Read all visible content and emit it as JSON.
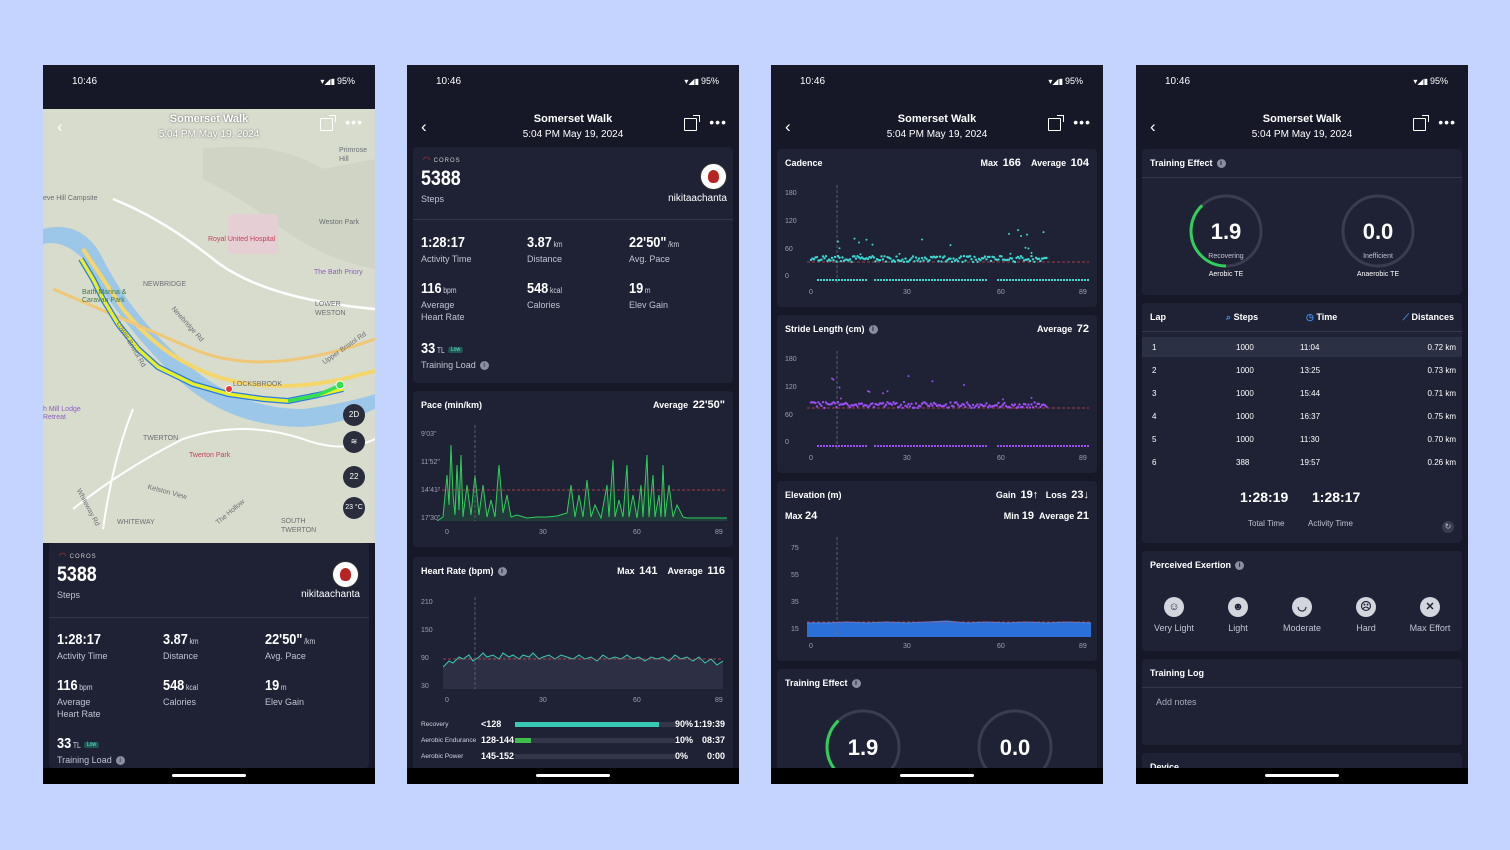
{
  "status": {
    "time": "10:46",
    "battery": "95%"
  },
  "header": {
    "title": "Somerset Walk",
    "subtitle": "5:04 PM May 19, 2024"
  },
  "summary": {
    "brand": "COROS",
    "steps_value": "5388",
    "steps_label": "Steps",
    "username": "nikitaachanta",
    "activity_time": "1:28:17",
    "activity_time_label": "Activity Time",
    "distance": "3.87",
    "distance_unit": "km",
    "distance_label": "Distance",
    "pace": "22'50\"",
    "pace_unit": "/km",
    "pace_label": "Avg. Pace",
    "heart_rate": "116",
    "heart_rate_unit": "bpm",
    "heart_rate_label_1": "Average",
    "heart_rate_label_2": "Heart Rate",
    "calories": "548",
    "calories_unit": "kcal",
    "calories_label": "Calories",
    "elev_gain": "19",
    "elev_gain_unit": "m",
    "elev_gain_label": "Elev Gain",
    "training_load": "33",
    "training_load_unit": "TL",
    "training_load_badge": "Low",
    "training_load_label": "Training Load"
  },
  "map": {
    "labels": [
      "Somerset Walk",
      "Primrose Hill",
      "Royal United Hospital",
      "Weston Park",
      "The Bath Priory",
      "NEWBRIDGE",
      "LOWER WESTON",
      "Bath Marina & Caravan Park",
      "Newbridge Rd",
      "Lower Bristol Rd",
      "Upper Bristol Rd",
      "TWERTON",
      "Twerton Park",
      "Kelston View",
      "WHITEWAY",
      "The Hollow",
      "SOUTH TWERTON",
      "Whiteway Rd",
      "eve Hill Campsite",
      "h Mill Lodge Retreat",
      "Lower Bristol Rd",
      "A4",
      "A36",
      "LOCKSBROOK"
    ],
    "buttons": {
      "twod": "2D",
      "hr": "22",
      "temp": "23 °C"
    }
  },
  "pace_chart": {
    "title": "Pace (min/km)",
    "avg_label": "Average",
    "avg_value": "22'50\"",
    "y_ticks": [
      "9'03\"",
      "11'52\"",
      "14'41\"",
      "17'30\""
    ],
    "x_ticks": [
      "0",
      "30",
      "60",
      "89"
    ]
  },
  "hr_chart": {
    "title": "Heart Rate (bpm)",
    "max_label": "Max",
    "max_value": "141",
    "avg_label": "Average",
    "avg_value": "116",
    "y_ticks": [
      "210",
      "150",
      "90",
      "30"
    ],
    "x_ticks": [
      "0",
      "30",
      "60",
      "89"
    ],
    "zones": [
      {
        "name": "Recovery",
        "range": "<128",
        "percent": "90%",
        "time": "1:19:39",
        "fill": 0.9,
        "color": "#37c9b3"
      },
      {
        "name": "Aerobic Endurance",
        "range": "128-144",
        "percent": "10%",
        "time": "08:37",
        "fill": 0.1,
        "color": "#3fbf4a"
      },
      {
        "name": "Aerobic Power",
        "range": "145-152",
        "percent": "0%",
        "time": "0:00",
        "fill": 0.0,
        "color": "#d1b82a"
      }
    ]
  },
  "cadence_chart": {
    "title": "Cadence",
    "max_label": "Max",
    "max_value": "166",
    "avg_label": "Average",
    "avg_value": "104",
    "y_ticks": [
      "180",
      "120",
      "60",
      "0"
    ],
    "x_ticks": [
      "0",
      "30",
      "60",
      "89"
    ],
    "color": "#3fd6d0"
  },
  "stride_chart": {
    "title": "Stride Length (cm)",
    "avg_label": "Average",
    "avg_value": "72",
    "y_ticks": [
      "180",
      "120",
      "60",
      "0"
    ],
    "x_ticks": [
      "0",
      "30",
      "60",
      "89"
    ],
    "color": "#9a4ef0"
  },
  "elevation_chart": {
    "title": "Elevation (m)",
    "gain_label": "Gain",
    "gain_value": "19↑",
    "loss_label": "Loss",
    "loss_value": "23↓",
    "max_label": "Max",
    "max_value": "24",
    "min_label": "Min",
    "min_value": "19",
    "avg_label": "Average",
    "avg_value": "21",
    "y_ticks": [
      "75",
      "55",
      "35",
      "15"
    ],
    "x_ticks": [
      "0",
      "30",
      "60",
      "89"
    ],
    "color": "#2b6fd8"
  },
  "training_effect": {
    "title": "Training Effect",
    "aerobic_value": "1.9",
    "aerobic_status": "Recovering",
    "aerobic_label": "Aerobic TE",
    "aerobic_fill": 0.38,
    "anaerobic_value": "0.0",
    "anaerobic_status": "Inefficient",
    "anaerobic_label": "Anaerobic TE",
    "anaerobic_fill": 0.0,
    "color": "#2fcf5a"
  },
  "laps": {
    "title": "Lap",
    "tabs": [
      "Steps",
      "Time",
      "Distances"
    ],
    "rows": [
      {
        "lap": "1",
        "steps": "1000",
        "time": "11:04",
        "dist": "0.72 km"
      },
      {
        "lap": "2",
        "steps": "1000",
        "time": "13:25",
        "dist": "0.73 km"
      },
      {
        "lap": "3",
        "steps": "1000",
        "time": "15:44",
        "dist": "0.71 km"
      },
      {
        "lap": "4",
        "steps": "1000",
        "time": "16:37",
        "dist": "0.75 km"
      },
      {
        "lap": "5",
        "steps": "1000",
        "time": "11:30",
        "dist": "0.70 km"
      },
      {
        "lap": "6",
        "steps": "388",
        "time": "19:57",
        "dist": "0.26 km"
      }
    ],
    "total_time": "1:28:19",
    "total_time_label": "Total Time",
    "activity_time": "1:28:17",
    "activity_time_label": "Activity Time"
  },
  "exertion": {
    "title": "Perceived Exertion",
    "options": [
      "Very Light",
      "Light",
      "Moderate",
      "Hard",
      "Max Effort"
    ]
  },
  "training_log": {
    "title": "Training Log",
    "placeholder": "Add notes"
  },
  "device": {
    "title": "Device"
  }
}
